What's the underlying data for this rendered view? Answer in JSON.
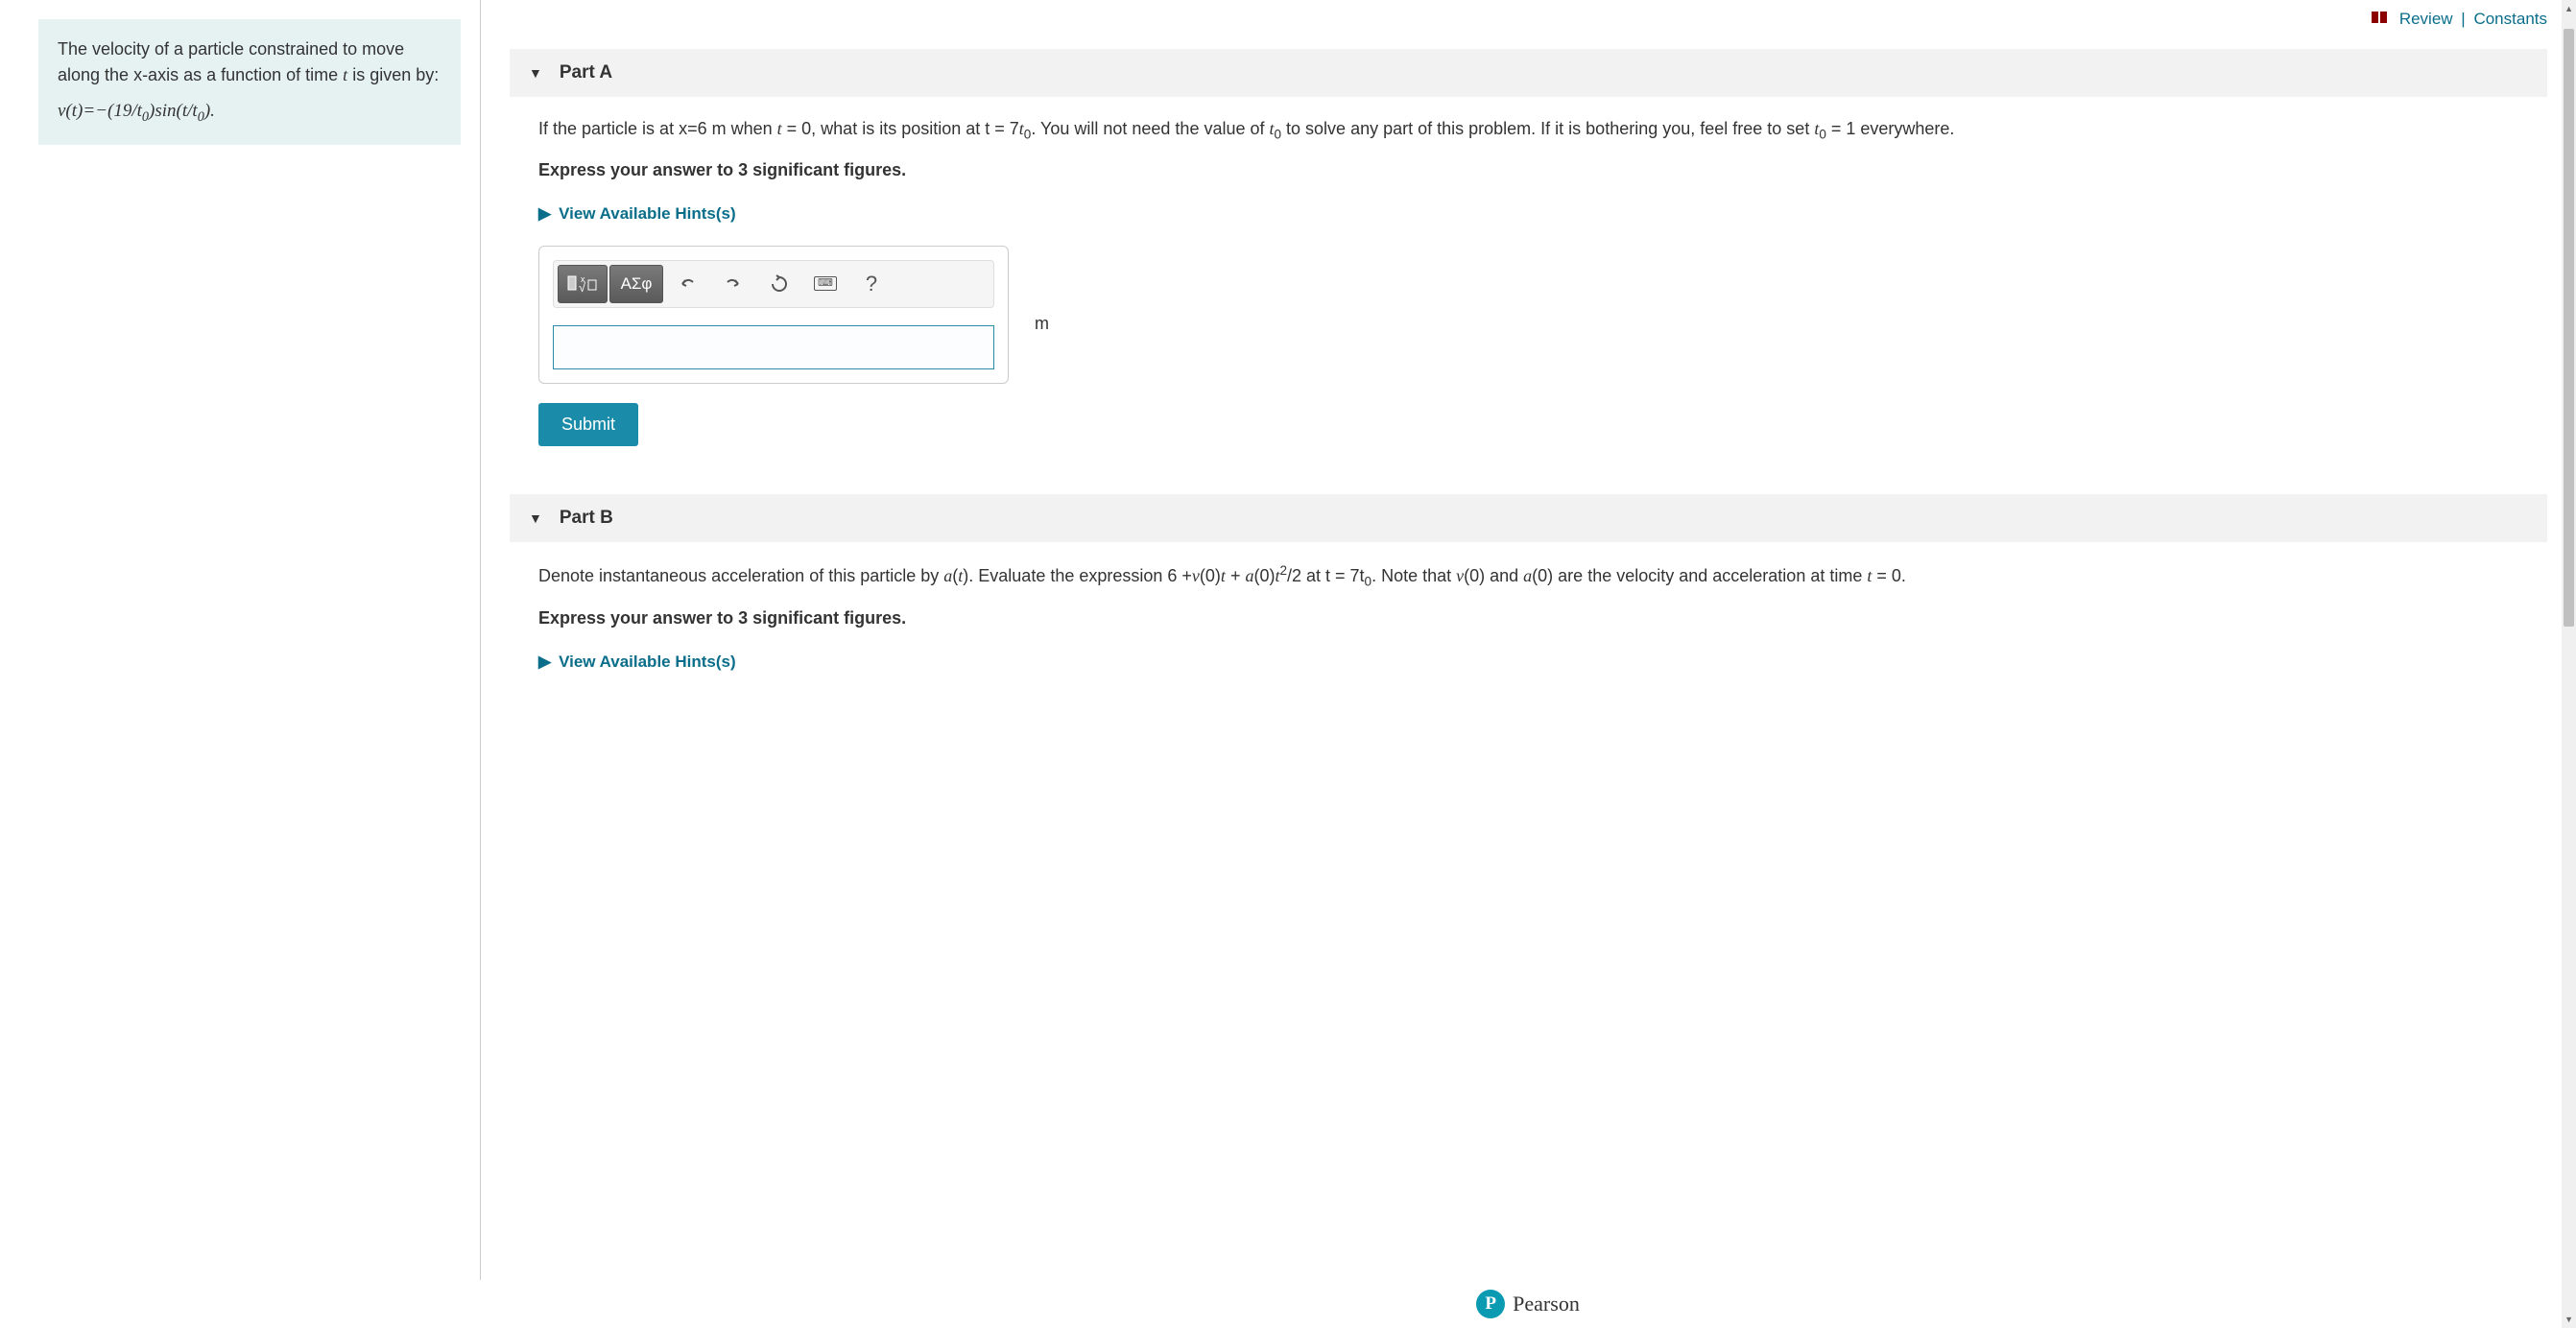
{
  "colors": {
    "problem_bg": "#e6f2f2",
    "link": "#0a6e8a",
    "submit_bg": "#1a8ba8",
    "pearson_circle": "#0a9bb3",
    "part_header_bg": "#f2f2f2",
    "input_border": "#2b8aa8"
  },
  "topLinks": {
    "review": "Review",
    "constants": "Constants",
    "separator": "|"
  },
  "problem": {
    "intro": "The velocity of a particle constrained to move along the x-axis as a function of time ",
    "intro_var": "t",
    "intro_tail": " is given by:",
    "equation_html": "v(t)=−(19/t<sub>0</sub>)sin(t/t<sub>0</sub>)."
  },
  "partA": {
    "title": "Part A",
    "question_html": "If the particle is at x=6 m when <span class='mathit'>t</span> = 0, what is its position at t = 7<span class='mathit'>t</span><sub>0</sub>. You will not need the value of <span class='mathit'>t</span><sub>0</sub> to solve any part of this problem. If it is bothering you, feel free to set <span class='mathit'>t</span><sub>0</sub> = 1 everywhere.",
    "instruction": "Express your answer to 3 significant figures.",
    "hints_label": "View Available Hints(s)",
    "unit": "m",
    "submit_label": "Submit",
    "toolbar": {
      "templates_label": "ᵡ√☐",
      "greek_label": "ΑΣφ",
      "help_label": "?"
    }
  },
  "partB": {
    "title": "Part B",
    "question_html": "Denote instantaneous acceleration of this particle by <span class='mathit'>a</span>(<span class='mathit'>t</span>). Evaluate the expression 6 +<span class='mathit'>v</span>(0)<span class='mathit'>t</span> + <span class='mathit'>a</span>(0)<span class='mathit'>t</span><sup>2</sup>/2 at t = 7t<sub>0</sub>. Note that <span class='mathit'>v</span>(0) and <span class='mathit'>a</span>(0) are the velocity and acceleration at time <span class='mathit'>t</span> = 0.",
    "instruction": "Express your answer to 3 significant figures.",
    "hints_label": "View Available Hints(s)"
  },
  "footer": {
    "logo_letter": "P",
    "brand": "Pearson"
  }
}
